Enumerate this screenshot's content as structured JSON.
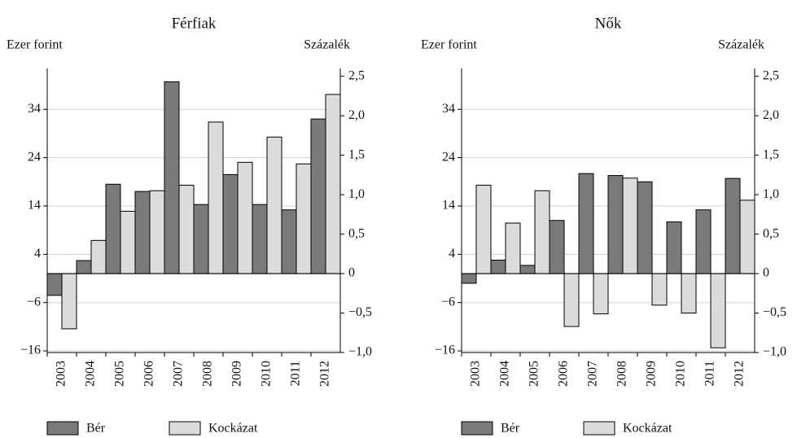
{
  "chart_data": [
    {
      "type": "bar",
      "title": "Férfiak",
      "ylabel": "Ezer forint",
      "y2label": "Százalék",
      "categories": [
        "2003",
        "2004",
        "2005",
        "2006",
        "2007",
        "2008",
        "2009",
        "2010",
        "2011",
        "2012"
      ],
      "series": [
        {
          "name": "Bér",
          "color": "#7a7a7a",
          "values": [
            -4.5,
            2.7,
            18.5,
            17,
            39.7,
            14.3,
            20.5,
            14.3,
            13.2,
            32
          ]
        },
        {
          "name": "Kockázat",
          "color": "#dcdcdc",
          "axis": "y2",
          "values": [
            -0.7,
            0.42,
            0.79,
            1.05,
            1.12,
            1.92,
            1.41,
            1.73,
            1.39,
            2.27
          ]
        }
      ],
      "ylim": [
        -16.33,
        42.47
      ],
      "yticks": [
        {
          "value": -16,
          "label": "−16"
        },
        {
          "value": -6,
          "label": "−6"
        },
        4,
        14,
        24,
        34
      ],
      "y2lim": [
        -1.0,
        2.6
      ],
      "y2ticks": [
        {
          "value": -1.0,
          "label": "−1,0"
        },
        {
          "value": -0.5,
          "label": "−0,5"
        },
        0,
        {
          "value": 0.5,
          "label": "0,5"
        },
        {
          "value": 1.0,
          "label": "1,0"
        },
        {
          "value": 1.5,
          "label": "1,5"
        },
        {
          "value": 2.0,
          "label": "2,0"
        },
        {
          "value": 2.5,
          "label": "2,5"
        }
      ],
      "grid": true
    },
    {
      "type": "bar",
      "title": "Nők",
      "ylabel": "Ezer forint",
      "y2label": "Százalék",
      "categories": [
        "2003",
        "2004",
        "2005",
        "2006",
        "2007",
        "2008",
        "2009",
        "2010",
        "2011",
        "2012"
      ],
      "series": [
        {
          "name": "Bér",
          "color": "#7a7a7a",
          "values": [
            -2,
            2.8,
            1.7,
            11,
            20.7,
            20.3,
            19,
            10.7,
            13.2,
            19.7
          ]
        },
        {
          "name": "Kockázat",
          "color": "#dcdcdc",
          "axis": "y2",
          "values": [
            1.12,
            0.64,
            1.05,
            -0.67,
            -0.51,
            1.21,
            -0.4,
            -0.5,
            -0.94,
            0.93
          ]
        }
      ],
      "ylim": [
        -16.33,
        42.47
      ],
      "yticks": [
        {
          "value": -16,
          "label": "−16"
        },
        {
          "value": -6,
          "label": "−6"
        },
        4,
        14,
        24,
        34
      ],
      "y2lim": [
        -1.0,
        2.6
      ],
      "y2ticks": [
        {
          "value": -1.0,
          "label": "−1,0"
        },
        {
          "value": -0.5,
          "label": "−0,5"
        },
        0,
        {
          "value": 0.5,
          "label": "0,5"
        },
        {
          "value": 1.0,
          "label": "1,0"
        },
        {
          "value": 1.5,
          "label": "1,5"
        },
        {
          "value": 2.0,
          "label": "2,0"
        },
        {
          "value": 2.5,
          "label": "2,5"
        }
      ],
      "grid": true
    }
  ]
}
